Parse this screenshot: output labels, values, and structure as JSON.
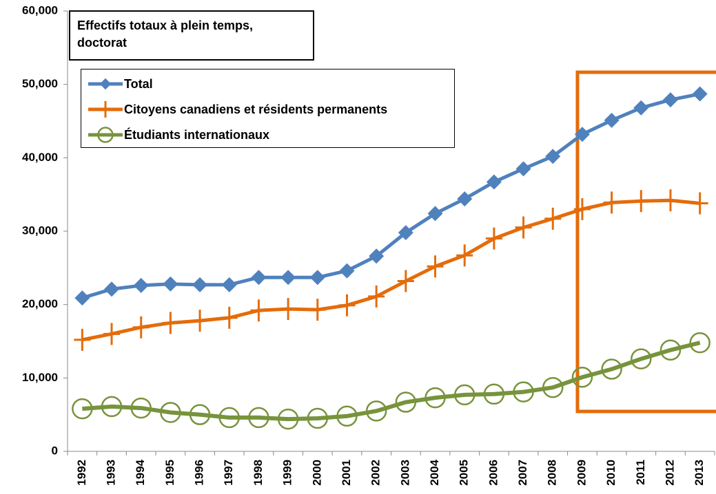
{
  "chart_data": {
    "type": "line",
    "title": "Effectifs totaux à plein temps, doctorat",
    "categories": [
      "1992",
      "1993",
      "1994",
      "1995",
      "1996",
      "1997",
      "1998",
      "1999",
      "2000",
      "2001",
      "2002",
      "2003",
      "2004",
      "2005",
      "2006",
      "2007",
      "2008",
      "2009",
      "2010",
      "2011",
      "2012",
      "2013"
    ],
    "series": [
      {
        "name": "Total",
        "color": "#4f81bd",
        "marker": "diamond",
        "values": [
          20900,
          22100,
          22600,
          22800,
          22700,
          22700,
          23700,
          23700,
          23700,
          24600,
          26600,
          29800,
          32400,
          34400,
          36700,
          38500,
          40200,
          43200,
          45100,
          46800,
          47900,
          48700
        ]
      },
      {
        "name": "Citoyens canadiens et résidents permanents",
        "color": "#e46c0a",
        "marker": "plus",
        "values": [
          15200,
          16000,
          16900,
          17500,
          17800,
          18200,
          19200,
          19400,
          19300,
          19900,
          21100,
          23200,
          25200,
          26700,
          29000,
          30500,
          31700,
          33000,
          33900,
          34100,
          34200,
          33800
        ]
      },
      {
        "name": "Étudiants internationaux",
        "color": "#77933c",
        "marker": "circle",
        "values": [
          5800,
          6100,
          5900,
          5300,
          5000,
          4600,
          4600,
          4400,
          4500,
          4800,
          5500,
          6700,
          7300,
          7700,
          7800,
          8100,
          8700,
          10100,
          11200,
          12600,
          13800,
          14800
        ]
      }
    ],
    "ylim": [
      0,
      60000
    ],
    "yticks": [
      0,
      {
        "value": 10000,
        "label": "10,000"
      },
      {
        "value": 20000,
        "label": "20,000"
      },
      {
        "value": 30000,
        "label": "30,000"
      },
      {
        "value": 40000,
        "label": "40,000"
      },
      {
        "value": 50000,
        "label": "50,000"
      },
      {
        "value": 60000,
        "label": "60,000"
      }
    ]
  }
}
